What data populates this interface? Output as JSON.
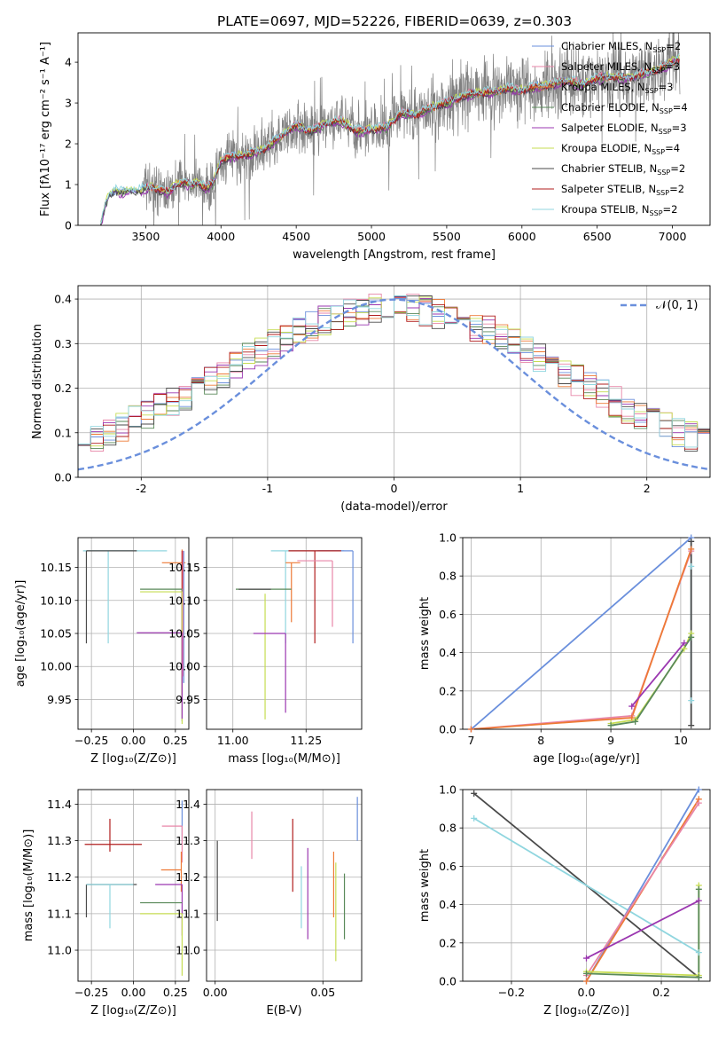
{
  "figure": {
    "title": "PLATE=0697, MJD=52226, FIBERID=0639, z=0.303"
  },
  "chart_data": [
    {
      "id": "spectrum",
      "type": "line",
      "xlabel": "wavelength [Angstrom, rest frame]",
      "ylabel": "Flux [fλ10⁻¹⁷ erg cm⁻² s⁻¹ A⁻¹]",
      "xlim": [
        3050,
        7250
      ],
      "ylim": [
        0,
        4.72
      ],
      "xticks": [
        3500,
        4000,
        4500,
        5000,
        5500,
        6000,
        6500,
        7000
      ],
      "yticks": [
        0,
        1,
        2,
        3,
        4
      ],
      "grid": false,
      "legend_position": "top-right",
      "observed": {
        "color": "#808080",
        "x": [
          3200,
          3230,
          3260,
          3300,
          3350,
          3400,
          3450,
          3500,
          3550,
          3600,
          3650,
          3700,
          3750,
          3800,
          3850,
          3900,
          3950,
          4000,
          4100,
          4200,
          4300,
          4400,
          4500,
          4600,
          4700,
          4800,
          4900,
          5000,
          5100,
          5200,
          5300,
          5400,
          5500,
          5600,
          5700,
          5800,
          5900,
          6000,
          6100,
          6200,
          6300,
          6400,
          6500,
          6600,
          6700,
          6800,
          6900,
          7000,
          7050
        ],
        "y": [
          0.0,
          0.5,
          0.75,
          0.85,
          0.8,
          0.85,
          0.85,
          0.9,
          0.95,
          0.85,
          0.8,
          1.0,
          1.05,
          1.0,
          1.05,
          0.9,
          1.05,
          1.6,
          1.7,
          1.75,
          1.9,
          2.2,
          2.45,
          2.3,
          2.5,
          2.55,
          2.3,
          2.35,
          2.4,
          2.75,
          2.7,
          2.9,
          3.0,
          3.15,
          3.25,
          3.25,
          3.35,
          3.3,
          3.4,
          3.45,
          3.55,
          3.45,
          3.6,
          3.65,
          3.6,
          3.7,
          3.8,
          4.0,
          4.1
        ]
      },
      "models": [
        {
          "name": "Chabrier MILES, N_SSP=2",
          "color": "#6a8fdc",
          "offset": 0.02
        },
        {
          "name": "Salpeter MILES, N_SSP=3",
          "color": "#e886a8",
          "offset": 0.04
        },
        {
          "name": "Kroupa MILES, N_SSP=3",
          "color": "#ee7a36",
          "offset": 0.0
        },
        {
          "name": "Chabrier ELODIE, N_SSP=4",
          "color": "#5a8a5a",
          "offset": -0.03
        },
        {
          "name": "Salpeter ELODIE, N_SSP=3",
          "color": "#9b37b0",
          "offset": -0.05
        },
        {
          "name": "Kroupa ELODIE, N_SSP=4",
          "color": "#c6dc52",
          "offset": 0.03
        },
        {
          "name": "Chabrier STELIB, N_SSP=2",
          "color": "#4a4a4a",
          "offset": -0.02
        },
        {
          "name": "Salpeter STELIB, N_SSP=2",
          "color": "#b11e1e",
          "offset": 0.01
        },
        {
          "name": "Kroupa STELIB, N_SSP=2",
          "color": "#90d6df",
          "offset": 0.05
        }
      ]
    },
    {
      "id": "residuals",
      "type": "bar",
      "xlabel": "(data-model)/error",
      "ylabel": "Normed distribution",
      "xlim": [
        -2.5,
        2.5
      ],
      "ylim": [
        0,
        0.43
      ],
      "xticks": [
        -2,
        -1,
        0,
        1,
        2
      ],
      "yticks": [
        0.0,
        0.1,
        0.2,
        0.3,
        0.4
      ],
      "grid": true,
      "legend_position": "top-right",
      "reference": {
        "name": "𝒩(0, 1)",
        "color": "#6a8fdc"
      },
      "bin_edges": [
        -2.5,
        -2.4,
        -2.3,
        -2.2,
        -2.1,
        -2.0,
        -1.9,
        -1.8,
        -1.7,
        -1.6,
        -1.5,
        -1.4,
        -1.3,
        -1.2,
        -1.1,
        -1.0,
        -0.9,
        -0.8,
        -0.7,
        -0.6,
        -0.5,
        -0.4,
        -0.3,
        -0.2,
        -0.1,
        0.0,
        0.1,
        0.2,
        0.3,
        0.4,
        0.5,
        0.6,
        0.7,
        0.8,
        0.9,
        1.0,
        1.1,
        1.2,
        1.3,
        1.4,
        1.5,
        1.6,
        1.7,
        1.8,
        1.9,
        2.0,
        2.1,
        2.2,
        2.3,
        2.4,
        2.5
      ]
    },
    {
      "id": "age-vs-Z",
      "type": "scatter",
      "xlabel": "Z [log₁₀(Z/Z⊙)]",
      "ylabel": "age  [log₁₀(age/yr)]",
      "xlim": [
        -0.33,
        0.33
      ],
      "ylim": [
        9.905,
        10.195
      ],
      "xticks": [
        -0.25,
        0.0,
        0.25
      ],
      "xticklabels": [
        "−0.25",
        "0.00",
        "0.25"
      ],
      "yticks": [
        9.95,
        10.0,
        10.05,
        10.1,
        10.15
      ],
      "grid": true,
      "points": [
        {
          "color": "#90d6df",
          "x": -0.15,
          "y": 10.175,
          "xerr": [
            0.15,
            0.35
          ],
          "yerr": [
            0.14,
            0.0
          ]
        },
        {
          "color": "#4a4a4a",
          "x": -0.28,
          "y": 10.175,
          "xerr": [
            0.0,
            0.3
          ],
          "yerr": [
            0.14,
            0.0
          ]
        },
        {
          "color": "#ee7a36",
          "x": 0.29,
          "y": 10.157,
          "xerr": [
            0.12,
            0.02
          ],
          "yerr": [
            0.2,
            0.02
          ]
        },
        {
          "color": "#b11e1e",
          "x": 0.29,
          "y": 10.145,
          "xerr": [
            0.0,
            0.0
          ],
          "yerr": [
            0.2,
            0.03
          ]
        },
        {
          "color": "#5a8a5a",
          "x": 0.29,
          "y": 10.117,
          "xerr": [
            0.25,
            0.0
          ],
          "yerr": [
            0.2,
            0.0
          ]
        },
        {
          "color": "#c6dc52",
          "x": 0.29,
          "y": 10.113,
          "xerr": [
            0.25,
            0.0
          ],
          "yerr": [
            0.2,
            0.0
          ]
        },
        {
          "color": "#9b37b0",
          "x": 0.29,
          "y": 10.051,
          "xerr": [
            0.27,
            0.0
          ],
          "yerr": [
            0.13,
            0.0
          ]
        },
        {
          "color": "#6a8fdc",
          "x": 0.3,
          "y": 10.175,
          "xerr": [
            0.0,
            0.0
          ],
          "yerr": [
            0.2,
            0.0
          ]
        },
        {
          "color": "#e886a8",
          "x": 0.295,
          "y": 10.175,
          "xerr": [
            0.0,
            0.0
          ],
          "yerr": [
            0.19,
            0.0
          ]
        }
      ]
    },
    {
      "id": "age-vs-mass",
      "type": "scatter",
      "xlabel": "mass [log₁₀(M/M⊙)]",
      "ylabel": "",
      "xlim": [
        10.91,
        11.44
      ],
      "ylim": [
        9.905,
        10.195
      ],
      "xticks": [
        11.0,
        11.25
      ],
      "xticklabels": [
        "11.00",
        "11.25"
      ],
      "yticks": [
        9.95,
        10.0,
        10.05,
        10.1,
        10.15
      ],
      "grid": true,
      "points": [
        {
          "color": "#90d6df",
          "x": 11.18,
          "y": 10.175,
          "xerr": [
            0.05,
            0.2
          ],
          "yerr": [
            0.14,
            0.0
          ]
        },
        {
          "color": "#6a8fdc",
          "x": 11.41,
          "y": 10.175,
          "xerr": [
            0.12,
            0.0
          ],
          "yerr": [
            0.14,
            0.0
          ]
        },
        {
          "color": "#ee7a36",
          "x": 11.2,
          "y": 10.157,
          "xerr": [
            0.02,
            0.03
          ],
          "yerr": [
            0.09,
            0.0
          ]
        },
        {
          "color": "#b11e1e",
          "x": 11.28,
          "y": 10.175,
          "xerr": [
            0.09,
            0.09
          ],
          "yerr": [
            0.14,
            0.0
          ]
        },
        {
          "color": "#e886a8",
          "x": 11.34,
          "y": 10.16,
          "xerr": [
            0.12,
            0.0
          ],
          "yerr": [
            0.1,
            0.0
          ]
        },
        {
          "color": "#5a8a5a",
          "x": 11.12,
          "y": 10.117,
          "xerr": [
            0.11,
            0.08
          ],
          "yerr": [
            0.0,
            0.0
          ]
        },
        {
          "color": "#4a4a4a",
          "x": 11.13,
          "y": 10.117,
          "xerr": [
            0.11,
            0.0
          ],
          "yerr": [
            0.0,
            0.0
          ]
        },
        {
          "color": "#c6dc52",
          "x": 11.11,
          "y": 10.11,
          "xerr": [
            0.0,
            0.0
          ],
          "yerr": [
            0.19,
            0.0
          ]
        },
        {
          "color": "#9b37b0",
          "x": 11.18,
          "y": 10.05,
          "xerr": [
            0.11,
            0.0
          ],
          "yerr": [
            0.12,
            0.0
          ]
        }
      ]
    },
    {
      "id": "weight-vs-age",
      "type": "line",
      "xlabel": "age  [log₁₀(age/yr)]",
      "ylabel": "mass weight",
      "xlim": [
        6.88,
        10.42
      ],
      "ylim": [
        0.0,
        1.0
      ],
      "xticks": [
        7,
        8,
        9,
        10
      ],
      "yticks": [
        0.0,
        0.2,
        0.4,
        0.6,
        0.8,
        1.0
      ],
      "grid": true,
      "series": [
        {
          "color": "#6a8fdc",
          "x": [
            7.0,
            10.15
          ],
          "y": [
            0.0,
            1.0
          ]
        },
        {
          "color": "#e886a8",
          "x": [
            7.0,
            9.3,
            10.15
          ],
          "y": [
            0.0,
            0.07,
            0.93
          ]
        },
        {
          "color": "#ee7a36",
          "x": [
            7.0,
            9.3,
            10.15
          ],
          "y": [
            0.0,
            0.06,
            0.94
          ]
        },
        {
          "color": "#9b37b0",
          "x": [
            9.3,
            10.05
          ],
          "y": [
            0.12,
            0.45
          ]
        },
        {
          "color": "#c6dc52",
          "x": [
            9.0,
            9.35,
            10.05,
            10.15
          ],
          "y": [
            0.03,
            0.05,
            0.42,
            0.5
          ]
        },
        {
          "color": "#5a8a5a",
          "x": [
            9.0,
            9.35,
            10.15
          ],
          "y": [
            0.02,
            0.04,
            0.48
          ]
        },
        {
          "color": "#90d6df",
          "x": [
            10.15,
            10.15
          ],
          "y": [
            0.15,
            0.85
          ]
        },
        {
          "color": "#4a4a4a",
          "x": [
            10.15,
            10.15
          ],
          "y": [
            0.02,
            0.98
          ]
        }
      ]
    },
    {
      "id": "mass-vs-Z",
      "type": "scatter",
      "xlabel": "Z [log₁₀(Z/Z⊙)]",
      "ylabel": "mass [log₁₀(M/M⊙)]",
      "xlim": [
        -0.33,
        0.33
      ],
      "ylim": [
        10.915,
        11.44
      ],
      "xticks": [
        -0.25,
        0.0,
        0.25
      ],
      "xticklabels": [
        "−0.25",
        "0.00",
        "0.25"
      ],
      "yticks": [
        11.0,
        11.1,
        11.2,
        11.3,
        11.4
      ],
      "grid": true,
      "points": [
        {
          "color": "#b11e1e",
          "x": -0.14,
          "y": 11.29,
          "xerr": [
            0.15,
            0.19
          ],
          "yerr": [
            0.02,
            0.07
          ]
        },
        {
          "color": "#4a4a4a",
          "x": -0.28,
          "y": 11.18,
          "xerr": [
            0.0,
            0.3
          ],
          "yerr": [
            0.09,
            0.0
          ]
        },
        {
          "color": "#90d6df",
          "x": -0.14,
          "y": 11.18,
          "xerr": [
            0.14,
            0.14
          ],
          "yerr": [
            0.12,
            0.0
          ]
        },
        {
          "color": "#6a8fdc",
          "x": 0.29,
          "y": 11.41,
          "xerr": [
            0.0,
            0.0
          ],
          "yerr": [
            0.12,
            0.0
          ]
        },
        {
          "color": "#e886a8",
          "x": 0.29,
          "y": 11.34,
          "xerr": [
            0.12,
            0.0
          ],
          "yerr": [
            0.1,
            0.0
          ]
        },
        {
          "color": "#ee7a36",
          "x": 0.285,
          "y": 11.22,
          "xerr": [
            0.12,
            0.0
          ],
          "yerr": [
            0.06,
            0.05
          ]
        },
        {
          "color": "#9b37b0",
          "x": 0.29,
          "y": 11.18,
          "xerr": [
            0.16,
            0.0
          ],
          "yerr": [
            0.14,
            0.0
          ]
        },
        {
          "color": "#5a8a5a",
          "x": 0.29,
          "y": 11.13,
          "xerr": [
            0.25,
            0.0
          ],
          "yerr": [
            0.0,
            0.0
          ]
        },
        {
          "color": "#c6dc52",
          "x": 0.29,
          "y": 11.1,
          "xerr": [
            0.25,
            0.0
          ],
          "yerr": [
            0.17,
            0.0
          ]
        }
      ]
    },
    {
      "id": "mass-vs-EBV",
      "type": "scatter",
      "xlabel": "E(B-V)",
      "ylabel": "",
      "xlim": [
        -0.004,
        0.068
      ],
      "ylim": [
        10.915,
        11.44
      ],
      "xticks": [
        0.0,
        0.05
      ],
      "xticklabels": [
        "0.00",
        "0.05"
      ],
      "yticks": [
        11.0,
        11.1,
        11.2,
        11.3,
        11.4
      ],
      "grid": true,
      "points": [
        {
          "color": "#4a4a4a",
          "x": 0.001,
          "y": 11.2,
          "yerr": [
            0.12,
            0.1
          ]
        },
        {
          "color": "#e886a8",
          "x": 0.017,
          "y": 11.31,
          "yerr": [
            0.06,
            0.07
          ]
        },
        {
          "color": "#b11e1e",
          "x": 0.036,
          "y": 11.26,
          "yerr": [
            0.1,
            0.1
          ]
        },
        {
          "color": "#90d6df",
          "x": 0.04,
          "y": 11.14,
          "yerr": [
            0.08,
            0.09
          ]
        },
        {
          "color": "#9b37b0",
          "x": 0.043,
          "y": 11.15,
          "yerr": [
            0.12,
            0.13
          ]
        },
        {
          "color": "#c6dc52",
          "x": 0.056,
          "y": 11.1,
          "yerr": [
            0.13,
            0.14
          ]
        },
        {
          "color": "#ee7a36",
          "x": 0.055,
          "y": 11.18,
          "yerr": [
            0.09,
            0.09
          ]
        },
        {
          "color": "#5a8a5a",
          "x": 0.06,
          "y": 11.12,
          "yerr": [
            0.09,
            0.09
          ]
        },
        {
          "color": "#6a8fdc",
          "x": 0.066,
          "y": 11.37,
          "yerr": [
            0.07,
            0.05
          ]
        }
      ]
    },
    {
      "id": "weight-vs-Z",
      "type": "line",
      "xlabel": "Z [log₁₀(Z/Z⊙)]",
      "ylabel": "mass weight",
      "xlim": [
        -0.33,
        0.33
      ],
      "ylim": [
        0.0,
        1.0
      ],
      "xticks": [
        -0.2,
        0.0,
        0.2
      ],
      "xticklabels": [
        "−0.2",
        "0.0",
        "0.2"
      ],
      "yticks": [
        0.0,
        0.2,
        0.4,
        0.6,
        0.8,
        1.0
      ],
      "grid": true,
      "series": [
        {
          "color": "#4a4a4a",
          "x": [
            -0.3,
            0.3
          ],
          "y": [
            0.98,
            0.02
          ]
        },
        {
          "color": "#90d6df",
          "x": [
            -0.3,
            0.3
          ],
          "y": [
            0.85,
            0.15
          ]
        },
        {
          "color": "#6a8fdc",
          "x": [
            0.0,
            0.3
          ],
          "y": [
            0.0,
            1.0
          ]
        },
        {
          "color": "#ee7a36",
          "x": [
            0.0,
            0.3
          ],
          "y": [
            0.0,
            0.95
          ]
        },
        {
          "color": "#e886a8",
          "x": [
            0.0,
            0.3
          ],
          "y": [
            0.03,
            0.93
          ]
        },
        {
          "color": "#9b37b0",
          "x": [
            0.0,
            0.3
          ],
          "y": [
            0.12,
            0.42
          ]
        },
        {
          "color": "#c6dc52",
          "x": [
            0.0,
            0.3,
            0.3
          ],
          "y": [
            0.05,
            0.03,
            0.5
          ]
        },
        {
          "color": "#5a8a5a",
          "x": [
            0.0,
            0.3,
            0.3
          ],
          "y": [
            0.04,
            0.02,
            0.48
          ]
        }
      ]
    }
  ]
}
